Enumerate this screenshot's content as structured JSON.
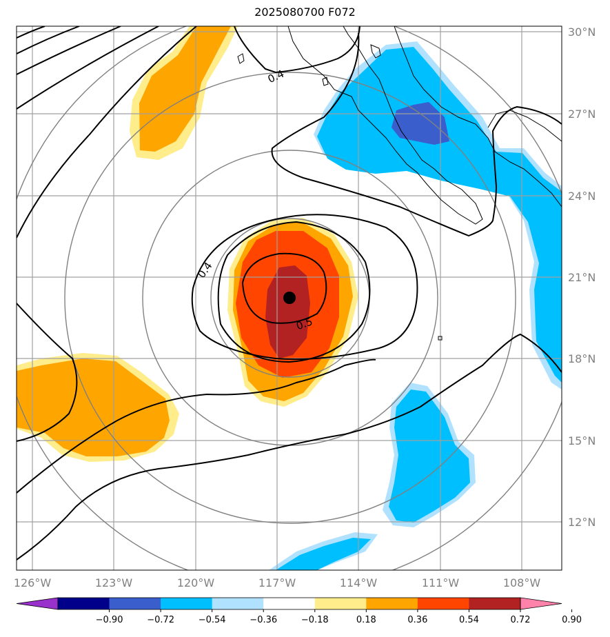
{
  "title": "2025080700 F072",
  "map": {
    "lat_labels": [
      "30°N",
      "27°N",
      "24°N",
      "21°N",
      "18°N",
      "15°N",
      "12°N"
    ],
    "lon_labels": [
      "126°W",
      "123°W",
      "120°W",
      "117°W",
      "114°W",
      "111°W",
      "108°W"
    ],
    "contour_labels": [
      "0.4",
      "0.4",
      "0.5"
    ],
    "storm_center": {
      "lat": 20.2,
      "lon": "116.6W"
    },
    "colors": {
      "grid": "#a0a0a0",
      "range_rings": "#808080",
      "contours": "#000000",
      "coast": "#000000"
    }
  },
  "colorbar": {
    "labels": [
      "−0.90",
      "−0.72",
      "−0.54",
      "−0.36",
      "−0.18",
      "0.18",
      "0.36",
      "0.54",
      "0.72",
      "0.90"
    ],
    "colors": [
      "#9932cc",
      "#00008b",
      "#3a5fcd",
      "#00bfff",
      "#b0e2ff",
      "#ffffff",
      "#ffec8b",
      "#ffa500",
      "#ff4500",
      "#b22222",
      "#ff82ab"
    ]
  }
}
